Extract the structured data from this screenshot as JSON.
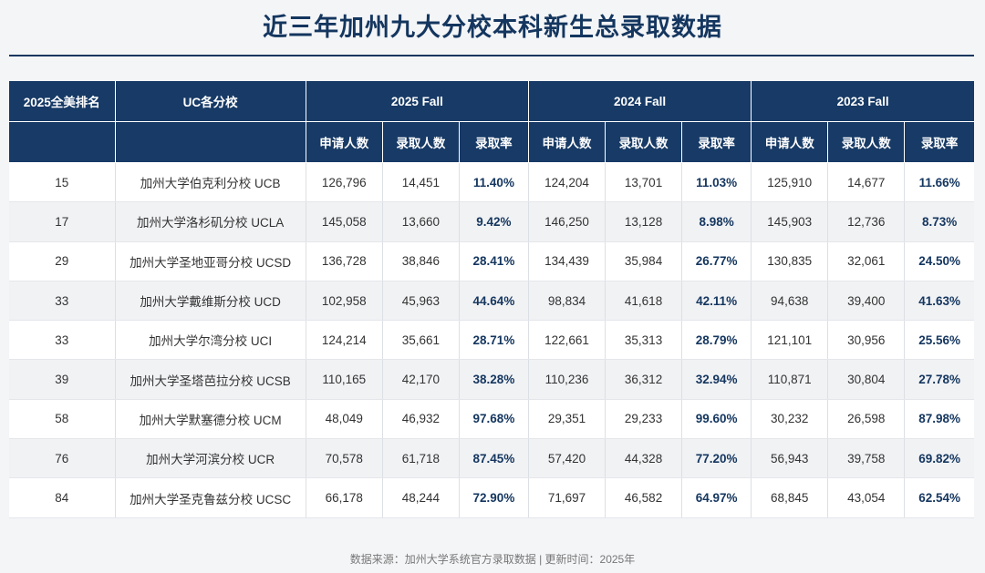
{
  "title": "近三年加州九大分校本科新生总录取数据",
  "headers": {
    "rank": "2025全美排名",
    "school": "UC各分校",
    "years": [
      "2025 Fall",
      "2024 Fall",
      "2023 Fall"
    ],
    "sub": [
      "申请人数",
      "录取人数",
      "录取率"
    ]
  },
  "rows": [
    {
      "rank": "15",
      "school": "加州大学伯克利分校 UCB",
      "y2025": [
        "126,796",
        "14,451",
        "11.40%"
      ],
      "y2024": [
        "124,204",
        "13,701",
        "11.03%"
      ],
      "y2023": [
        "125,910",
        "14,677",
        "11.66%"
      ]
    },
    {
      "rank": "17",
      "school": "加州大学洛杉矶分校 UCLA",
      "y2025": [
        "145,058",
        "13,660",
        "9.42%"
      ],
      "y2024": [
        "146,250",
        "13,128",
        "8.98%"
      ],
      "y2023": [
        "145,903",
        "12,736",
        "8.73%"
      ]
    },
    {
      "rank": "29",
      "school": "加州大学圣地亚哥分校 UCSD",
      "y2025": [
        "136,728",
        "38,846",
        "28.41%"
      ],
      "y2024": [
        "134,439",
        "35,984",
        "26.77%"
      ],
      "y2023": [
        "130,835",
        "32,061",
        "24.50%"
      ]
    },
    {
      "rank": "33",
      "school": "加州大学戴维斯分校 UCD",
      "y2025": [
        "102,958",
        "45,963",
        "44.64%"
      ],
      "y2024": [
        "98,834",
        "41,618",
        "42.11%"
      ],
      "y2023": [
        "94,638",
        "39,400",
        "41.63%"
      ]
    },
    {
      "rank": "33",
      "school": "加州大学尔湾分校 UCI",
      "y2025": [
        "124,214",
        "35,661",
        "28.71%"
      ],
      "y2024": [
        "122,661",
        "35,313",
        "28.79%"
      ],
      "y2023": [
        "121,101",
        "30,956",
        "25.56%"
      ]
    },
    {
      "rank": "39",
      "school": "加州大学圣塔芭拉分校 UCSB",
      "y2025": [
        "110,165",
        "42,170",
        "38.28%"
      ],
      "y2024": [
        "110,236",
        "36,312",
        "32.94%"
      ],
      "y2023": [
        "110,871",
        "30,804",
        "27.78%"
      ]
    },
    {
      "rank": "58",
      "school": "加州大学默塞德分校 UCM",
      "y2025": [
        "48,049",
        "46,932",
        "97.68%"
      ],
      "y2024": [
        "29,351",
        "29,233",
        "99.60%"
      ],
      "y2023": [
        "30,232",
        "26,598",
        "87.98%"
      ]
    },
    {
      "rank": "76",
      "school": "加州大学河滨分校 UCR",
      "y2025": [
        "70,578",
        "61,718",
        "87.45%"
      ],
      "y2024": [
        "57,420",
        "44,328",
        "77.20%"
      ],
      "y2023": [
        "56,943",
        "39,758",
        "69.82%"
      ]
    },
    {
      "rank": "84",
      "school": "加州大学圣克鲁兹分校 UCSC",
      "y2025": [
        "66,178",
        "48,244",
        "72.90%"
      ],
      "y2024": [
        "71,697",
        "46,582",
        "64.97%"
      ],
      "y2023": [
        "68,845",
        "43,054",
        "62.54%"
      ]
    }
  ],
  "source": "数据来源：加州大学系统官方录取数据 | 更新时间：2025年",
  "colors": {
    "header_bg": "#173a66",
    "accent": "#14365f",
    "alt_row": "#f1f2f4"
  }
}
